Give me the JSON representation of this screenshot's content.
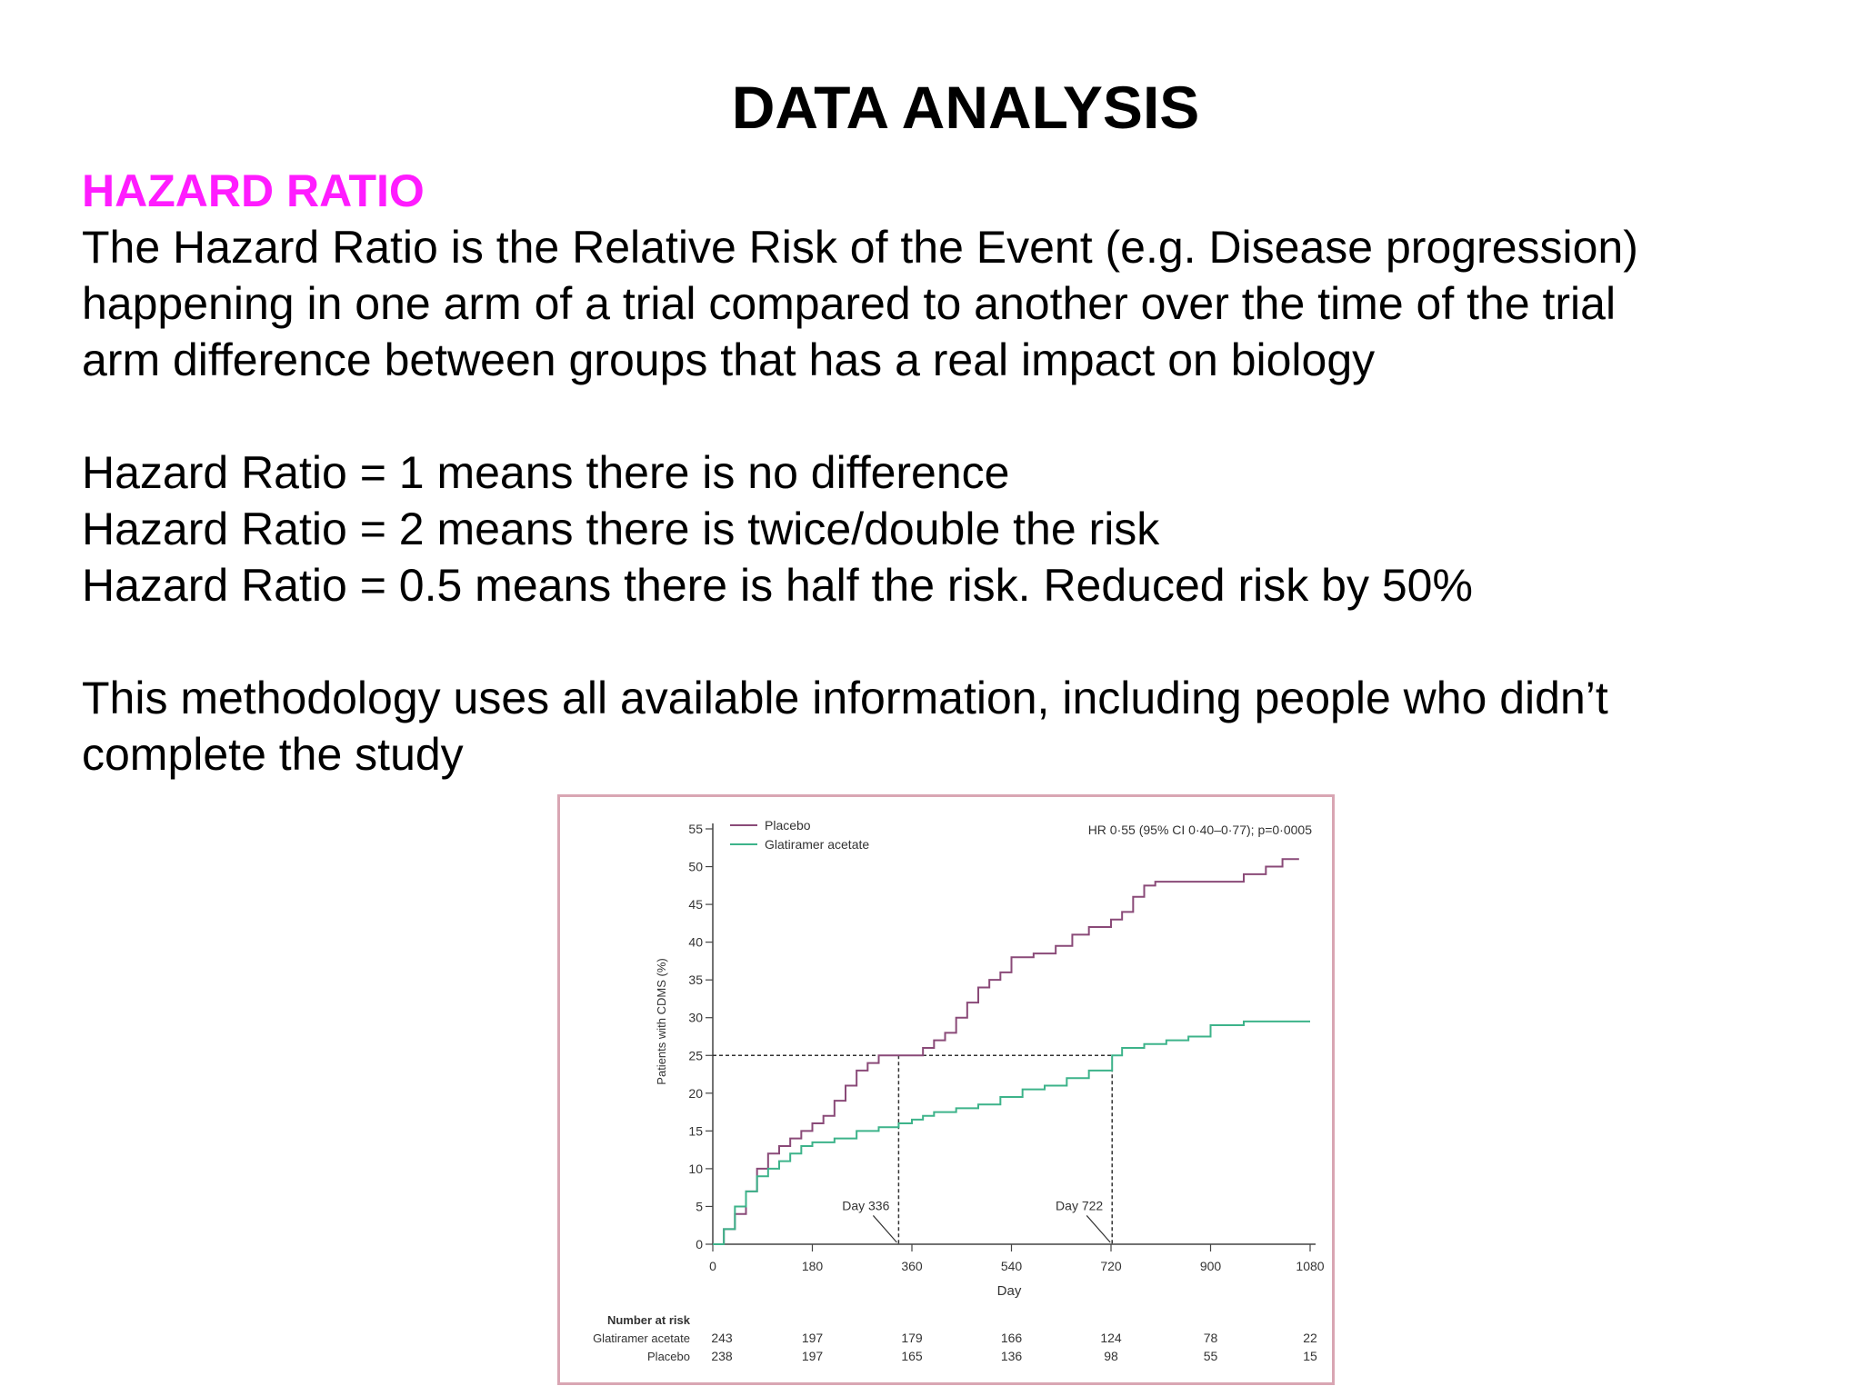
{
  "slide": {
    "title": "DATA ANALYSIS",
    "section_heading": "HAZARD RATIO",
    "definition_lines": [
      "The Hazard Ratio is the Relative Risk of the Event (e.g. Disease progression)",
      "happening in one arm of a trial compared to another over the time of the trial",
      "arm difference between groups that has a real impact on biology"
    ],
    "examples": [
      "Hazard Ratio = 1 means there is no difference",
      "Hazard Ratio = 2 means there is twice/double the risk",
      "Hazard Ratio = 0.5 means there is half the risk. Reduced risk by 50%"
    ],
    "note_lines": [
      "This methodology uses all available information, including people who didn’t",
      "complete the study"
    ]
  },
  "chart_data": {
    "type": "line",
    "annotation_hr": "HR 0·55 (95% CI 0·40–0·77); p=0·0005",
    "xlabel": "Day",
    "ylabel": "Patients with CDMS (%)",
    "xlim": [
      0,
      1080
    ],
    "ylim": [
      0,
      55
    ],
    "x_ticks": [
      "0",
      "180",
      "360",
      "540",
      "720",
      "900",
      "1080"
    ],
    "y_ticks": [
      "0",
      "5",
      "10",
      "15",
      "20",
      "25",
      "30",
      "35",
      "40",
      "45",
      "50",
      "55"
    ],
    "colors": {
      "placebo": "#8a4a78",
      "glatiramer": "#3db38a",
      "frame": "#d9a6b3"
    },
    "series": [
      {
        "name": "Placebo",
        "points": [
          [
            0,
            0
          ],
          [
            20,
            2
          ],
          [
            40,
            4
          ],
          [
            60,
            7
          ],
          [
            80,
            10
          ],
          [
            100,
            12
          ],
          [
            120,
            13
          ],
          [
            140,
            14
          ],
          [
            160,
            15
          ],
          [
            180,
            16
          ],
          [
            200,
            17
          ],
          [
            220,
            19
          ],
          [
            240,
            21
          ],
          [
            260,
            23
          ],
          [
            280,
            24
          ],
          [
            300,
            25
          ],
          [
            336,
            25
          ],
          [
            360,
            25
          ],
          [
            380,
            26
          ],
          [
            400,
            27
          ],
          [
            420,
            28
          ],
          [
            440,
            30
          ],
          [
            460,
            32
          ],
          [
            480,
            34
          ],
          [
            500,
            35
          ],
          [
            520,
            36
          ],
          [
            540,
            38
          ],
          [
            580,
            38.5
          ],
          [
            620,
            39.5
          ],
          [
            650,
            41
          ],
          [
            680,
            42
          ],
          [
            720,
            43
          ],
          [
            740,
            44
          ],
          [
            760,
            46
          ],
          [
            780,
            47.5
          ],
          [
            800,
            48
          ],
          [
            900,
            48
          ],
          [
            960,
            49
          ],
          [
            1000,
            50
          ],
          [
            1030,
            51
          ],
          [
            1060,
            51
          ]
        ]
      },
      {
        "name": "Glatiramer acetate",
        "points": [
          [
            0,
            0
          ],
          [
            20,
            2
          ],
          [
            40,
            5
          ],
          [
            60,
            7
          ],
          [
            80,
            9
          ],
          [
            100,
            10
          ],
          [
            120,
            11
          ],
          [
            140,
            12
          ],
          [
            160,
            13
          ],
          [
            180,
            13.5
          ],
          [
            220,
            14
          ],
          [
            260,
            15
          ],
          [
            300,
            15.5
          ],
          [
            336,
            16
          ],
          [
            360,
            16.5
          ],
          [
            380,
            17
          ],
          [
            400,
            17.5
          ],
          [
            440,
            18
          ],
          [
            480,
            18.5
          ],
          [
            520,
            19.5
          ],
          [
            560,
            20.5
          ],
          [
            600,
            21
          ],
          [
            640,
            22
          ],
          [
            680,
            23
          ],
          [
            722,
            25
          ],
          [
            740,
            26
          ],
          [
            780,
            26.5
          ],
          [
            820,
            27
          ],
          [
            860,
            27.5
          ],
          [
            900,
            29
          ],
          [
            960,
            29.5
          ],
          [
            1080,
            29.5
          ]
        ]
      }
    ],
    "reference": {
      "y": 25,
      "markers": [
        {
          "x": 336,
          "label": "Day 336"
        },
        {
          "x": 722,
          "label": "Day 722"
        }
      ]
    },
    "risk_table": {
      "title": "Number at risk",
      "days": [
        0,
        180,
        360,
        540,
        720,
        900,
        1080
      ],
      "rows": [
        {
          "label": "Glatiramer acetate",
          "values": [
            "243",
            "197",
            "179",
            "166",
            "124",
            "78",
            "22"
          ]
        },
        {
          "label": "Placebo",
          "values": [
            "238",
            "197",
            "165",
            "136",
            "98",
            "55",
            "15"
          ]
        }
      ]
    }
  }
}
